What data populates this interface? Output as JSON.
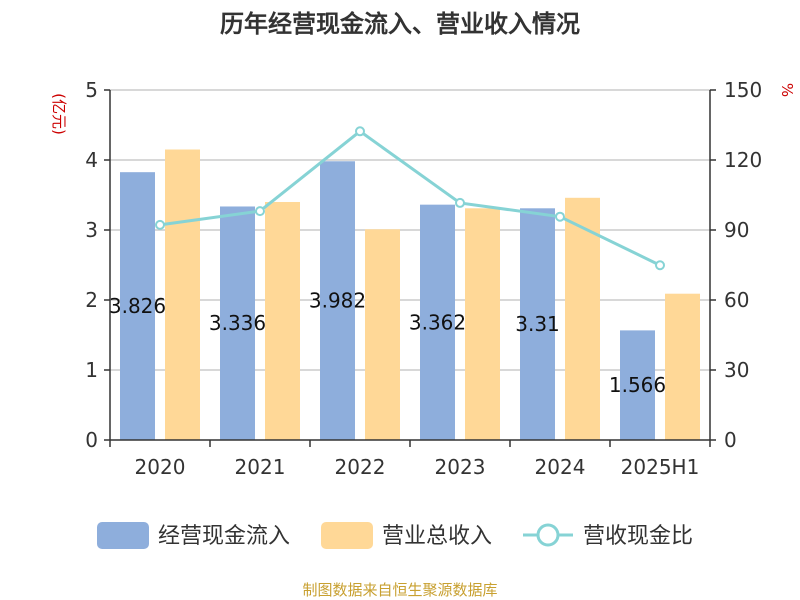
{
  "chart_data": {
    "type": "bar",
    "title": "历年经营现金流入、营业收入情况",
    "categories": [
      "2020",
      "2021",
      "2022",
      "2023",
      "2024",
      "2025H1"
    ],
    "y_left": {
      "unit": "(亿元)",
      "ylim": [
        0,
        5
      ],
      "ticks": [
        "0",
        "1",
        "2",
        "3",
        "4",
        "5"
      ]
    },
    "y_right": {
      "unit": "%",
      "ylim": [
        0,
        150
      ],
      "ticks": [
        "0",
        "30",
        "60",
        "90",
        "120",
        "150"
      ]
    },
    "series": [
      {
        "name": "经营现金流入",
        "type": "bar",
        "axis": "left",
        "color": "#8eaedc",
        "values": [
          3.826,
          3.336,
          3.982,
          3.362,
          3.31,
          1.566
        ],
        "labels": [
          "3.826",
          "3.336",
          "3.982",
          "3.362",
          "3.31",
          "1.566"
        ]
      },
      {
        "name": "营业总收入",
        "type": "bar",
        "axis": "left",
        "color": "#ffd897",
        "values": [
          4.15,
          3.4,
          3.01,
          3.31,
          3.46,
          2.09
        ]
      },
      {
        "name": "营收现金比",
        "type": "line",
        "axis": "right",
        "color": "#86d3d5",
        "values": [
          92.2,
          98.1,
          132.3,
          101.6,
          95.7,
          74.9
        ]
      }
    ],
    "grid": true,
    "legend_position": "bottom"
  },
  "source": "制图数据来自恒生聚源数据库",
  "colors": {
    "axis": "#333333",
    "grid": "#cccccc",
    "unit": "#cc0000",
    "source": "#c8a030"
  }
}
